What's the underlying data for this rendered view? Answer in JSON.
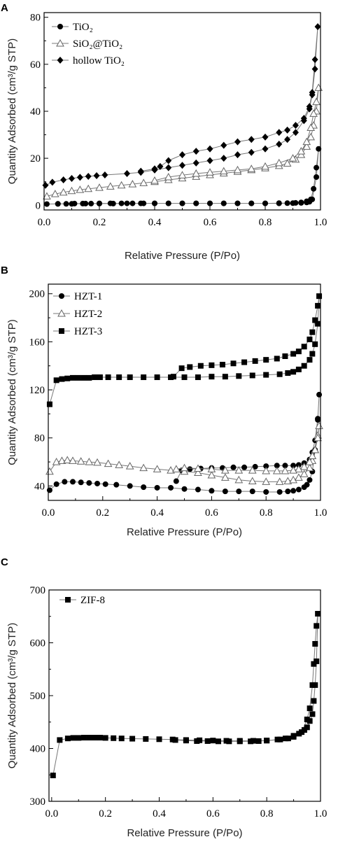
{
  "chart_data": [
    {
      "panel": "A",
      "type": "line",
      "xlabel": "Relative Pressure (P/Po)",
      "ylabel": "Quantity Adsorbed (cm³/g STP)",
      "xlim": [
        0,
        1.0
      ],
      "ylim": [
        -2,
        82
      ],
      "xticks": [
        0.0,
        0.2,
        0.4,
        0.6,
        0.8,
        1.0
      ],
      "yticks": [
        0,
        20,
        40,
        60,
        80
      ],
      "grid": false,
      "legend_position": "top-left",
      "series": [
        {
          "name": "TiO₂",
          "marker": "circle",
          "x": [
            0.01,
            0.05,
            0.08,
            0.11,
            0.14,
            0.17,
            0.2,
            0.24,
            0.28,
            0.32,
            0.36,
            0.4,
            0.45,
            0.5,
            0.55,
            0.6,
            0.65,
            0.7,
            0.75,
            0.8,
            0.85,
            0.88,
            0.91,
            0.93,
            0.95,
            0.965,
            0.975,
            0.985,
            0.993,
            0.985,
            0.97,
            0.96,
            0.95,
            0.93,
            0.9,
            0.85,
            0.8,
            0.75,
            0.7,
            0.65,
            0.6,
            0.55,
            0.5,
            0.45,
            0.4,
            0.35,
            0.3,
            0.25,
            0.2,
            0.15,
            0.1,
            0.05
          ],
          "y": [
            0.5,
            0.6,
            0.6,
            0.7,
            0.7,
            0.7,
            0.8,
            0.8,
            0.8,
            0.8,
            0.8,
            0.8,
            0.8,
            0.8,
            0.8,
            0.8,
            0.8,
            0.8,
            0.8,
            0.8,
            0.9,
            0.9,
            1.0,
            1.2,
            1.7,
            2.5,
            7,
            16,
            24,
            12,
            2.5,
            1.5,
            1.2,
            1.0,
            0.9,
            0.8,
            0.8,
            0.8,
            0.8,
            0.8,
            0.8,
            0.8,
            0.8,
            0.8,
            0.8,
            0.8,
            0.8,
            0.7,
            0.7,
            0.7,
            0.6,
            0.6
          ]
        },
        {
          "name": "SiO₂@TiO₂",
          "marker": "triangle",
          "x": [
            0.01,
            0.04,
            0.07,
            0.1,
            0.13,
            0.16,
            0.2,
            0.24,
            0.28,
            0.32,
            0.36,
            0.4,
            0.45,
            0.5,
            0.55,
            0.6,
            0.65,
            0.7,
            0.75,
            0.8,
            0.85,
            0.88,
            0.91,
            0.93,
            0.95,
            0.965,
            0.975,
            0.985,
            0.993,
            0.985,
            0.975,
            0.965,
            0.95,
            0.93,
            0.9,
            0.85,
            0.8,
            0.75,
            0.7,
            0.65,
            0.6,
            0.55,
            0.5,
            0.45,
            0.4
          ],
          "y": [
            3.8,
            4.8,
            5.5,
            6.1,
            6.6,
            7.0,
            7.5,
            8.0,
            8.5,
            9.0,
            9.5,
            10.0,
            10.8,
            11.5,
            12.2,
            12.9,
            13.6,
            14.3,
            15.0,
            15.8,
            16.8,
            17.8,
            19.5,
            21.5,
            25,
            29,
            34,
            40,
            50,
            44,
            39,
            33,
            27,
            23,
            20,
            18,
            16.5,
            15.5,
            15,
            14.5,
            14,
            13.5,
            12.8,
            12,
            10.5
          ]
        },
        {
          "name": "hollow TiO₂",
          "marker": "diamond",
          "x": [
            0.005,
            0.03,
            0.07,
            0.1,
            0.13,
            0.16,
            0.19,
            0.22,
            0.3,
            0.35,
            0.4,
            0.45,
            0.5,
            0.55,
            0.6,
            0.65,
            0.7,
            0.75,
            0.8,
            0.85,
            0.88,
            0.91,
            0.94,
            0.96,
            0.97,
            0.98,
            0.99,
            0.98,
            0.97,
            0.96,
            0.94,
            0.91,
            0.88,
            0.85,
            0.8,
            0.75,
            0.7,
            0.65,
            0.6,
            0.55,
            0.5,
            0.45,
            0.42,
            0.4,
            0.35
          ],
          "y": [
            8.5,
            9.8,
            10.8,
            11.4,
            11.9,
            12.3,
            12.6,
            12.9,
            13.5,
            14.0,
            15.0,
            16.0,
            17.0,
            18.0,
            19.0,
            20.0,
            21.5,
            22.5,
            24.0,
            26.0,
            28.0,
            31,
            36,
            41,
            47,
            58,
            76,
            62,
            48,
            42,
            37,
            34,
            32,
            31,
            29,
            28,
            27,
            25.5,
            24,
            23,
            21.5,
            19,
            16.5,
            15.5,
            14.5
          ]
        }
      ]
    },
    {
      "panel": "B",
      "type": "line",
      "xlabel": "Relative Pressure (P/Po)",
      "ylabel": "Quantity Adsorbed (cm³/g STP)",
      "xlim": [
        0,
        1.0
      ],
      "ylim": [
        28,
        208
      ],
      "xticks": [
        0.0,
        0.2,
        0.4,
        0.6,
        0.8,
        1.0
      ],
      "yticks": [
        40,
        80,
        120,
        160,
        200
      ],
      "grid": false,
      "legend_position": "top-left",
      "series": [
        {
          "name": "HZT-1",
          "marker": "circle",
          "x": [
            0.005,
            0.03,
            0.06,
            0.09,
            0.12,
            0.15,
            0.18,
            0.21,
            0.25,
            0.3,
            0.35,
            0.4,
            0.45,
            0.5,
            0.55,
            0.6,
            0.65,
            0.7,
            0.75,
            0.8,
            0.85,
            0.88,
            0.9,
            0.92,
            0.94,
            0.95,
            0.96,
            0.97,
            0.98,
            0.99,
            0.995,
            0.99,
            0.98,
            0.97,
            0.96,
            0.94,
            0.92,
            0.9,
            0.87,
            0.84,
            0.8,
            0.76,
            0.72,
            0.68,
            0.64,
            0.6,
            0.56,
            0.52,
            0.49,
            0.47
          ],
          "y": [
            36.5,
            41.5,
            43.5,
            43.5,
            43,
            42.5,
            42,
            41.5,
            41,
            40,
            39,
            38.5,
            38.5,
            37.5,
            37,
            36,
            35.5,
            35.5,
            35.5,
            35,
            35,
            35.5,
            36,
            37,
            39,
            41,
            45,
            52,
            70,
            95,
            116,
            96,
            78,
            68,
            62,
            59,
            57.5,
            57,
            57,
            57,
            56.5,
            56,
            55.5,
            55.5,
            55,
            55,
            54.5,
            54,
            53,
            44
          ]
        },
        {
          "name": "HZT-2",
          "marker": "triangle",
          "x": [
            0.005,
            0.03,
            0.05,
            0.07,
            0.09,
            0.12,
            0.15,
            0.18,
            0.22,
            0.26,
            0.3,
            0.35,
            0.4,
            0.45,
            0.5,
            0.55,
            0.6,
            0.65,
            0.7,
            0.75,
            0.8,
            0.85,
            0.88,
            0.9,
            0.92,
            0.94,
            0.96,
            0.97,
            0.98,
            0.99,
            0.995,
            0.99,
            0.98,
            0.97,
            0.96,
            0.94,
            0.92,
            0.9,
            0.87,
            0.84,
            0.8,
            0.75,
            0.7,
            0.65,
            0.6,
            0.55,
            0.5,
            0.47
          ],
          "y": [
            52,
            60,
            61,
            61.5,
            61,
            60.5,
            60,
            59.5,
            58.5,
            57.5,
            56.5,
            55,
            54,
            53,
            52,
            51,
            49,
            47,
            45,
            44,
            43.5,
            43.5,
            44,
            45,
            47,
            50,
            55,
            61,
            70,
            82,
            90,
            80,
            70,
            65,
            60,
            56,
            54,
            53,
            52.5,
            52.5,
            52.5,
            53,
            53,
            53,
            54,
            54.5,
            55,
            54
          ]
        },
        {
          "name": "HZT-3",
          "marker": "square",
          "x": [
            0.005,
            0.03,
            0.05,
            0.07,
            0.09,
            0.11,
            0.13,
            0.15,
            0.17,
            0.19,
            0.22,
            0.26,
            0.3,
            0.35,
            0.4,
            0.45,
            0.5,
            0.55,
            0.6,
            0.65,
            0.7,
            0.75,
            0.8,
            0.85,
            0.88,
            0.9,
            0.92,
            0.94,
            0.96,
            0.97,
            0.98,
            0.99,
            0.995,
            0.99,
            0.98,
            0.97,
            0.96,
            0.94,
            0.92,
            0.9,
            0.87,
            0.84,
            0.8,
            0.76,
            0.72,
            0.68,
            0.64,
            0.6,
            0.56,
            0.52,
            0.49,
            0.46
          ],
          "y": [
            108,
            128,
            129,
            129.5,
            130,
            130,
            130,
            130,
            130.5,
            130.5,
            130.5,
            130.5,
            130.5,
            130.5,
            130.5,
            130.5,
            130.5,
            130.5,
            131,
            131,
            131.5,
            132,
            132.5,
            133,
            134,
            135,
            137,
            140,
            145,
            150,
            158,
            175,
            198,
            190,
            178,
            168,
            162,
            156,
            152,
            150,
            148,
            146,
            145,
            144,
            143,
            142,
            141,
            140.5,
            140,
            139,
            138,
            131
          ]
        }
      ]
    },
    {
      "panel": "C",
      "type": "line",
      "xlabel": "Relative Pressure (P/Po)",
      "ylabel": "Quantity Adsorbed (cm³/g STP)",
      "xlim": [
        -0.01,
        1.0
      ],
      "ylim": [
        300,
        700
      ],
      "xticks": [
        0.0,
        0.2,
        0.4,
        0.6,
        0.8,
        1.0
      ],
      "yticks": [
        300,
        400,
        500,
        600,
        700
      ],
      "grid": false,
      "legend_position": "top-left",
      "series": [
        {
          "name": "ZIF-8",
          "marker": "square",
          "x": [
            0.005,
            0.03,
            0.06,
            0.08,
            0.1,
            0.12,
            0.14,
            0.16,
            0.18,
            0.2,
            0.23,
            0.26,
            0.3,
            0.35,
            0.4,
            0.45,
            0.5,
            0.55,
            0.6,
            0.65,
            0.7,
            0.75,
            0.8,
            0.85,
            0.88,
            0.9,
            0.92,
            0.94,
            0.95,
            0.96,
            0.97,
            0.975,
            0.98,
            0.985,
            0.99,
            0.985,
            0.98,
            0.975,
            0.97,
            0.96,
            0.95,
            0.93,
            0.9,
            0.87,
            0.84,
            0.8,
            0.77,
            0.74,
            0.7,
            0.66,
            0.62,
            0.58,
            0.54,
            0.5,
            0.46
          ],
          "y": [
            349,
            416,
            419,
            420,
            420,
            420.5,
            420.5,
            420.5,
            420.5,
            420,
            419.5,
            419,
            418.5,
            418,
            417.5,
            417,
            416,
            415.5,
            415,
            414.5,
            414.5,
            414.5,
            415,
            417,
            419,
            422,
            428,
            435,
            440,
            452,
            465,
            490,
            520,
            565,
            655,
            632,
            598,
            560,
            520,
            476,
            455,
            431,
            424,
            419,
            417,
            415,
            414,
            413.5,
            413.5,
            413.5,
            413.5,
            414,
            414,
            415,
            416
          ]
        }
      ]
    }
  ]
}
